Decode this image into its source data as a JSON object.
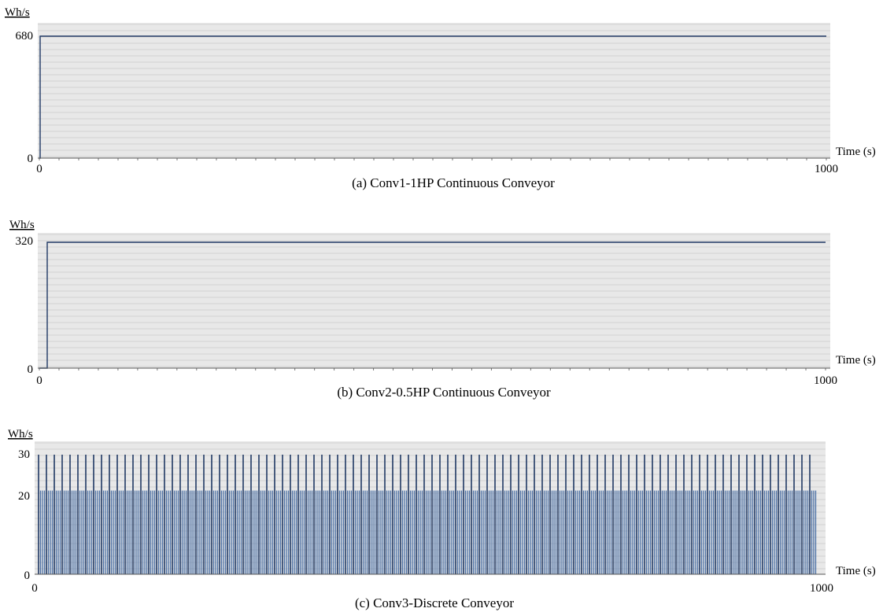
{
  "chart_data": [
    {
      "type": "line",
      "title": "(a) Conv1-1HP Continuous Conveyor",
      "ylabel": "Wh/s",
      "xlabel": "Time (s)",
      "xlim": [
        0,
        1000
      ],
      "ylim": [
        0,
        680
      ],
      "xticks": [
        "0",
        "1000"
      ],
      "yticks": [
        "0",
        "680"
      ],
      "grid": true,
      "x": [
        0,
        1,
        1,
        1000
      ],
      "y": [
        0,
        0,
        680,
        680
      ]
    },
    {
      "type": "line",
      "title": "(b) Conv2-0.5HP Continuous Conveyor",
      "ylabel": "Wh/s",
      "xlabel": "Time (s)",
      "xlim": [
        0,
        1000
      ],
      "ylim": [
        0,
        320
      ],
      "xticks": [
        "0",
        "1000"
      ],
      "yticks": [
        "0",
        "320"
      ],
      "grid": true,
      "x": [
        0,
        10,
        10,
        1000
      ],
      "y": [
        0,
        0,
        320,
        320
      ]
    },
    {
      "type": "bar",
      "title": "(c) Conv3-Discrete Conveyor",
      "ylabel": "Wh/s",
      "xlabel": "Time (s)",
      "xlim": [
        0,
        1000
      ],
      "ylim": [
        0,
        30
      ],
      "xticks": [
        "0",
        "1000"
      ],
      "yticks": [
        "0",
        "20",
        "30"
      ],
      "grid": true,
      "pattern": {
        "period_s": 10,
        "levels": [
          30,
          21,
          21,
          21
        ],
        "start_s": 5,
        "end_s": 995
      }
    }
  ],
  "colors": {
    "line": "#1f3864",
    "bar": "#4a6fa5",
    "plot_bg": "#e8e8e8",
    "grid": "#d2d2d2"
  }
}
